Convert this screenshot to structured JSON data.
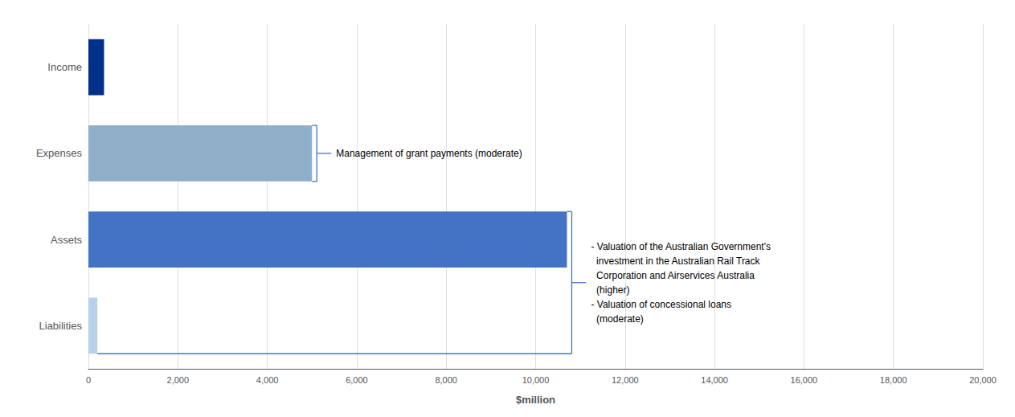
{
  "chart_data": {
    "type": "bar",
    "orientation": "horizontal",
    "categories": [
      "Liabilities",
      "Assets",
      "Expenses",
      "Income"
    ],
    "values": [
      200,
      10700,
      5000,
      350
    ],
    "colors": [
      "#b8d0e8",
      "#4472c4",
      "#8fafc8",
      "#003087"
    ],
    "xlabel": "$million",
    "xlim": [
      0,
      20000
    ],
    "xticks": [
      0,
      {
        "value": 2000,
        "label": "2,000"
      },
      {
        "value": 4000,
        "label": "4,000"
      },
      {
        "value": 6000,
        "label": "6,000"
      },
      {
        "value": 8000,
        "label": "8,000"
      },
      {
        "value": 10000,
        "label": "10,000"
      },
      {
        "value": 12000,
        "label": "12,000"
      },
      {
        "value": 14000,
        "label": "14,000"
      },
      {
        "value": 16000,
        "label": "16,000"
      },
      {
        "value": 18000,
        "label": "18,000"
      },
      {
        "value": 20000,
        "label": "20,000"
      }
    ],
    "grid": true,
    "annotations": [
      {
        "text": "Management of grant payments (moderate)",
        "categories": [
          "Expenses"
        ],
        "color": "#4472c4"
      },
      {
        "text": "- Valuation of the Australian Government's\n  investment in the Australian Rail Track\n  Corporation and Airservices Australia\n  (higher)\n- Valuation of concessional loans\n  (moderate)",
        "categories": [
          "Assets",
          "Liabilities"
        ],
        "color": "#4472c4"
      }
    ]
  }
}
